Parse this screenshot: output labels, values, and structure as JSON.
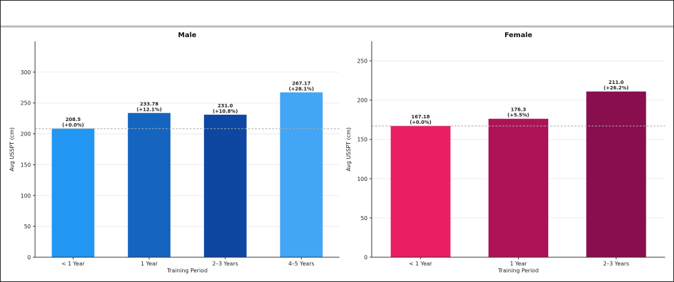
{
  "chart_data": [
    {
      "type": "bar",
      "title": "Male",
      "xlabel": "Training Period",
      "ylabel": "Avg USSPT (cm)",
      "categories": [
        "< 1 Year",
        "1 Year",
        "2–3 Years",
        "4–5 Years"
      ],
      "values": [
        208.5,
        233.78,
        231.0,
        267.17
      ],
      "value_labels": [
        "208.5",
        "233.78",
        "231.0",
        "267.17"
      ],
      "pct_labels": [
        "(+0.0%)",
        "(+12.1%)",
        "(+10.8%)",
        "(+28.1%)"
      ],
      "colors": [
        "#2196f3",
        "#1565c0",
        "#0d47a1",
        "#42a5f5"
      ],
      "ylim": [
        0,
        350
      ],
      "yticks": [
        0,
        50,
        100,
        150,
        200,
        250,
        300
      ],
      "baseline": 208.5,
      "grid": true
    },
    {
      "type": "bar",
      "title": "Female",
      "xlabel": "Training Period",
      "ylabel": "Avg USSPT (cm)",
      "categories": [
        "< 1 Year",
        "1 Year",
        "2–3 Years"
      ],
      "values": [
        167.18,
        176.3,
        211.0
      ],
      "value_labels": [
        "167.18",
        "176.3",
        "211.0"
      ],
      "pct_labels": [
        "(+0.0%)",
        "(+5.5%)",
        "(+26.2%)"
      ],
      "colors": [
        "#e91e63",
        "#ad1457",
        "#880e4f"
      ],
      "ylim": [
        0,
        275
      ],
      "yticks": [
        0,
        50,
        100,
        150,
        200,
        250
      ],
      "baseline": 167.18,
      "grid": true
    }
  ]
}
